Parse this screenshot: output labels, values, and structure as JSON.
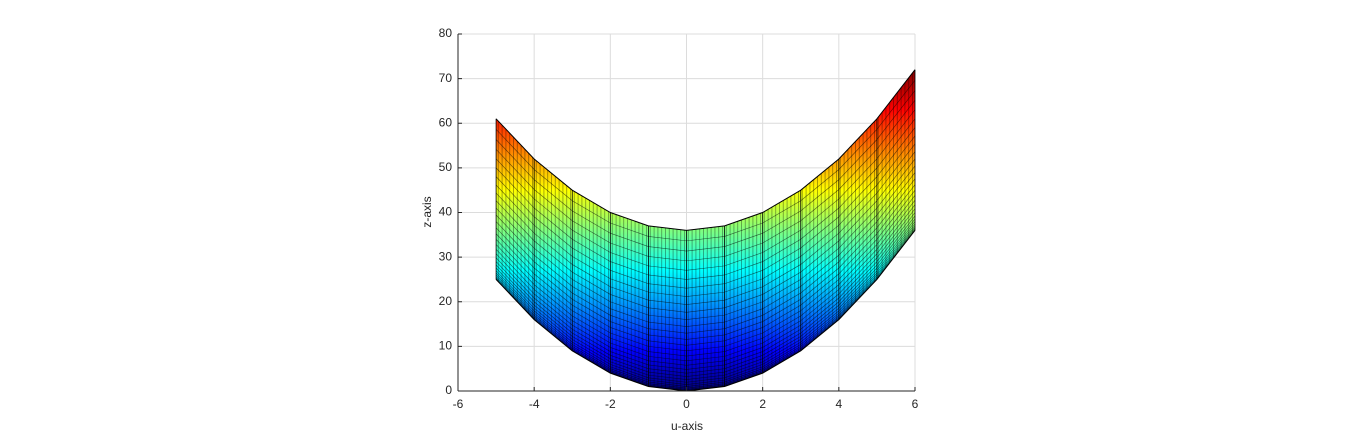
{
  "chart_data": {
    "type": "surface",
    "xlabel": "u-axis",
    "ylabel": "z-axis",
    "x": [
      -5,
      -4,
      -3,
      -2,
      -1,
      0,
      1,
      2,
      3,
      4,
      5,
      6
    ],
    "series": [
      {
        "values": [
          61,
          52,
          45,
          40,
          37,
          36,
          37,
          40,
          45,
          52,
          61,
          72
        ]
      },
      {
        "values": [
          25,
          16,
          9,
          4,
          1,
          0,
          1,
          4,
          9,
          16,
          25,
          36
        ]
      }
    ],
    "colormap": "jet",
    "grid": true,
    "xlim": [
      -6,
      6
    ],
    "xticks": [
      -6,
      -4,
      -2,
      0,
      2,
      4,
      6
    ],
    "ylim": [
      0,
      80
    ],
    "yticks": [
      0,
      10,
      20,
      30,
      40,
      50,
      60,
      70,
      80
    ]
  }
}
